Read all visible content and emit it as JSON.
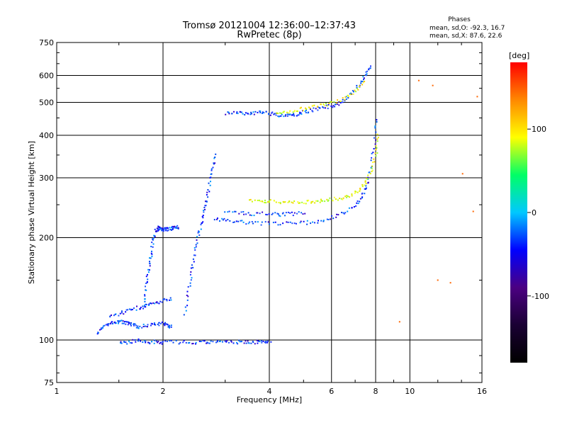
{
  "header": {
    "title_line1": "Tromsø 20121004 12:36:00–12:37:43",
    "title_line2": "RwPretec (8p)",
    "stats_title": "Phases",
    "stats_o": "mean, sd,O: -92.3, 16.7",
    "stats_x": "mean, sd,X:  87.6, 22.6"
  },
  "chart_data": {
    "type": "scatter",
    "title": "Tromsø 20121004 12:36:00–12:37:43",
    "subtitle": "RwPretec (8p)",
    "xlabel": "Frequency [MHz]",
    "ylabel": "Stationary phase Virtual Height [km]",
    "x_scale": "log2",
    "y_scale": "log",
    "xlim": [
      1,
      16
    ],
    "ylim": [
      75,
      750
    ],
    "x_ticks": [
      1,
      2,
      4,
      6,
      8,
      10,
      16
    ],
    "x_tick_labels": [
      "1",
      "2",
      "4",
      "6",
      "8",
      "10",
      "16"
    ],
    "y_ticks": [
      75,
      100,
      200,
      300,
      400,
      500,
      600,
      750
    ],
    "y_tick_labels": [
      "75",
      "100",
      "200",
      "300",
      "400",
      "500",
      "600",
      "750"
    ],
    "grid": true,
    "colorbar": {
      "label": "[deg]",
      "ticks": [
        100,
        0,
        -100
      ],
      "tick_labels": [
        "100",
        "0",
        "-100"
      ],
      "range": [
        -180,
        180
      ],
      "colors": [
        "#000000",
        "#1a0033",
        "#4b0082",
        "#0000ff",
        "#00c8ff",
        "#00ff66",
        "#ffff00",
        "#ff8800",
        "#ff0000"
      ]
    },
    "series": [
      {
        "name": "O",
        "mean_phase": -92.3,
        "color": "#1a33ff",
        "segments": [
          {
            "x": [
              1.3,
              1.35,
              1.4,
              1.45,
              1.5,
              1.55,
              1.6,
              1.65,
              1.7,
              1.8,
              1.9,
              2.0,
              2.05,
              2.1
            ],
            "y": [
              105,
              110,
              112,
              113,
              114,
              113,
              112,
              111,
              110,
              111,
              112,
              112,
              111,
              110
            ]
          },
          {
            "x": [
              1.4,
              1.5,
              1.6,
              1.7,
              1.8,
              1.9,
              2.0,
              2.1
            ],
            "y": [
              118,
              120,
              123,
              125,
              127,
              129,
              131,
              133
            ]
          },
          {
            "x": [
              1.5,
              1.6,
              1.7,
              1.8,
              1.9,
              2.0,
              2.2,
              2.4,
              2.6,
              2.8,
              3.0,
              3.2,
              3.4,
              3.6,
              3.8,
              4.0
            ],
            "y": [
              99,
              99,
              100,
              99,
              99,
              99,
              99,
              99,
              99,
              99,
              99,
              99,
              99,
              99,
              99,
              99
            ]
          },
          {
            "x": [
              1.75,
              1.78,
              1.8,
              1.83,
              1.85,
              1.87,
              1.9,
              1.93,
              1.95,
              1.98,
              2.0,
              2.05,
              2.1,
              2.15,
              2.2
            ],
            "y": [
              125,
              140,
              155,
              170,
              185,
              200,
              210,
              215,
              214,
              213,
              212,
              213,
              214,
              215,
              216
            ]
          },
          {
            "x": [
              2.3,
              2.35,
              2.4,
              2.45,
              2.5,
              2.55,
              2.6,
              2.65,
              2.7,
              2.75,
              2.8
            ],
            "y": [
              120,
              140,
              160,
              180,
              200,
              220,
              240,
              260,
              290,
              320,
              350
            ]
          },
          {
            "x": [
              2.8,
              3.0,
              3.3,
              3.6,
              4.0,
              4.5,
              5.0,
              5.5,
              6.0,
              6.5,
              7.0,
              7.3,
              7.5,
              7.7,
              7.9,
              8.0
            ],
            "y": [
              228,
              226,
              224,
              222,
              221,
              221,
              222,
              225,
              230,
              238,
              250,
              265,
              285,
              320,
              380,
              450
            ]
          },
          {
            "x": [
              3.0,
              3.3,
              3.6,
              4.0,
              4.3,
              4.6,
              5.0
            ],
            "y": [
              238,
              237,
              236,
              236,
              235,
              236,
              238
            ]
          },
          {
            "x": [
              3.0,
              3.2,
              3.4,
              3.6,
              3.8,
              4.0,
              4.2,
              4.4,
              4.6,
              4.8,
              5.0,
              5.3,
              5.6,
              6.0,
              6.3,
              6.6,
              7.0,
              7.3,
              7.5,
              7.7
            ],
            "y": [
              465,
              466,
              467,
              468,
              468,
              465,
              462,
              460,
              462,
              465,
              470,
              478,
              485,
              490,
              500,
              520,
              550,
              580,
              610,
              640
            ]
          }
        ]
      },
      {
        "name": "X",
        "mean_phase": 87.6,
        "color": "#e6e600",
        "segments": [
          {
            "x": [
              3.5,
              3.8,
              4.0,
              4.3,
              4.6,
              5.0,
              5.3,
              5.6,
              6.0,
              6.4,
              6.8,
              7.2,
              7.5,
              7.8,
              8.0,
              8.1
            ],
            "y": [
              260,
              258,
              257,
              256,
              256,
              256,
              257,
              258,
              260,
              263,
              268,
              278,
              295,
              320,
              360,
              400
            ]
          },
          {
            "x": [
              4.2,
              4.5,
              4.8,
              5.2,
              5.6,
              6.0,
              6.5,
              7.0,
              7.4
            ],
            "y": [
              470,
              472,
              478,
              485,
              492,
              500,
              515,
              545,
              575
            ]
          }
        ]
      },
      {
        "name": "scatter",
        "color": "#ff6600",
        "segments": [
          {
            "x": [
              9.3,
              10.5,
              11.5,
              12.0,
              13.0,
              14.0,
              15.0,
              15.5
            ],
            "y": [
              115,
              580,
              560,
              150,
              148,
              310,
              240,
              520
            ]
          }
        ]
      }
    ]
  }
}
